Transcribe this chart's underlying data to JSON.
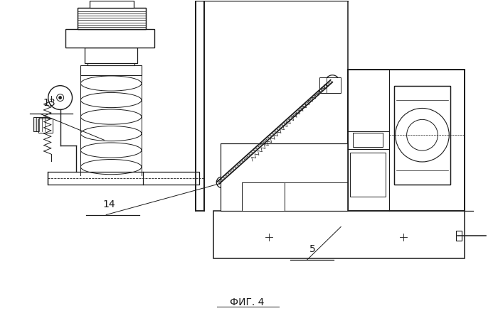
{
  "caption": "ФИГ. 4",
  "bg_color": "#ffffff",
  "line_color": "#1a1a1a",
  "fig_width": 7.0,
  "fig_height": 4.55,
  "dpi": 100
}
